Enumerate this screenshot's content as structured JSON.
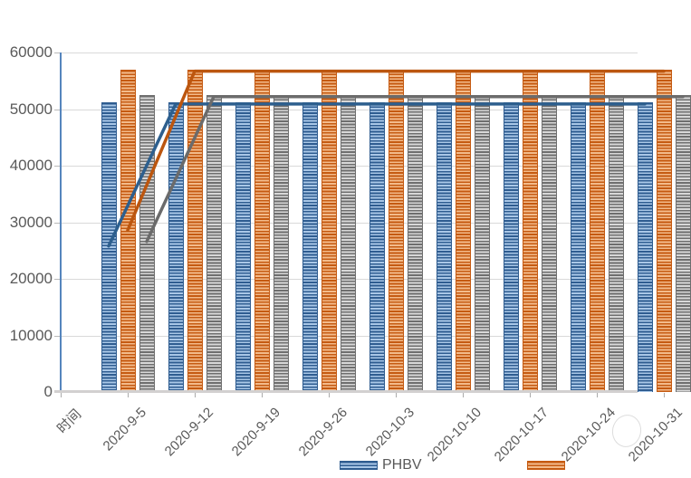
{
  "chart_data": {
    "type": "bar",
    "subtype": "clustered-bar-with-lines",
    "title": "",
    "x_axis": {
      "categories": [
        "时间",
        "2020-9-5",
        "2020-9-12",
        "2020-9-19",
        "2020-9-26",
        "2020-10-3",
        "2020-10-10",
        "2020-10-17",
        "2020-10-24",
        "2020-10-31"
      ],
      "note_first_category": "时间",
      "last_category_partially_clipped": true
    },
    "y_axis": {
      "min": 0,
      "max": 60000,
      "step": 10000,
      "tick_labels": [
        "60000",
        "50000",
        "40000",
        "30000",
        "20000",
        "10000",
        "0"
      ],
      "tick_values": [
        60000,
        50000,
        40000,
        30000,
        20000,
        10000,
        0
      ],
      "grid": true
    },
    "bars": [
      {
        "name": "PHBV",
        "colors": {
          "dark": "#2e5c90",
          "light": "#a9c7e7"
        },
        "values": [
          null,
          51200,
          51200,
          51200,
          51200,
          51200,
          51200,
          51200,
          51200,
          51200
        ]
      },
      {
        "name": "",
        "colors": {
          "dark": "#c55a11",
          "light": "#f3bb8b"
        },
        "values": [
          null,
          56900,
          56900,
          56900,
          56900,
          56900,
          56900,
          56900,
          56900,
          56900
        ]
      },
      {
        "name": "",
        "colors": {
          "dark": "#6e6e6e",
          "light": "#d8d8d8"
        },
        "values": [
          null,
          52500,
          52500,
          52500,
          52500,
          52500,
          52500,
          52500,
          52500,
          52500
        ]
      }
    ],
    "lines": [
      {
        "name": "",
        "color": "#2d5f8e",
        "values": [
          null,
          25800,
          50900,
          50900,
          50900,
          50900,
          50900,
          50900,
          50900,
          50900
        ]
      },
      {
        "name": "",
        "color": "#bc560f",
        "values": [
          null,
          28600,
          56700,
          56700,
          56700,
          56700,
          56700,
          56700,
          56700,
          56700
        ]
      },
      {
        "name": "",
        "color": "#6b6b6b",
        "values": [
          null,
          26600,
          52200,
          52200,
          52200,
          52200,
          52200,
          52200,
          52200,
          52200
        ]
      }
    ],
    "legend": {
      "position": "bottom",
      "items": [
        {
          "label": "PHBV",
          "series_index": 0
        },
        {
          "label": "",
          "series_index": 1
        }
      ]
    },
    "colors": {
      "axis_line_y": "#5585bd",
      "axis_line_x": "#d2d0d0",
      "gridline": "#d9d9d9",
      "text": "#595959"
    }
  }
}
